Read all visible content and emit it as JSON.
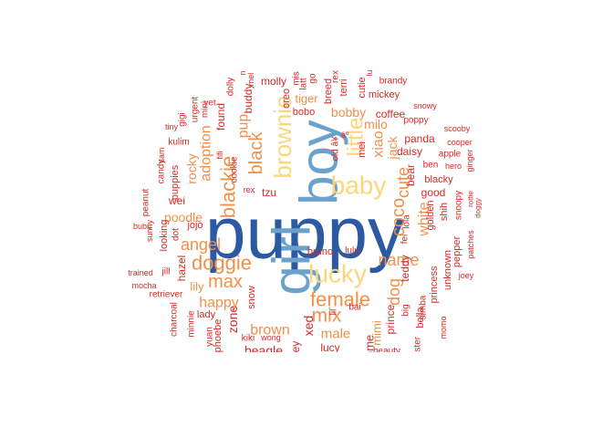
{
  "palette": {
    "dark_blue": "#2b5aa3",
    "mid_blue": "#6aa2cc",
    "yellow": "#fcd67a",
    "orange": "#f28f4a",
    "red": "#d62a26"
  },
  "words": [
    {
      "text": "puppy",
      "color": "dark_blue"
    },
    {
      "text": "boy",
      "color": "mid_blue"
    },
    {
      "text": "girl",
      "color": "mid_blue"
    },
    {
      "text": "lucky",
      "color": "yellow"
    },
    {
      "text": "baby",
      "color": "yellow"
    },
    {
      "text": "brownie",
      "color": "yellow"
    },
    {
      "text": "little",
      "color": "yellow"
    },
    {
      "text": "female",
      "color": "orange"
    },
    {
      "text": "mix",
      "color": "orange"
    },
    {
      "text": "doggie",
      "color": "orange"
    },
    {
      "text": "blackie",
      "color": "orange"
    },
    {
      "text": "black",
      "color": "orange"
    },
    {
      "text": "max",
      "color": "orange"
    },
    {
      "text": "angel",
      "color": "orange"
    },
    {
      "text": "name",
      "color": "orange"
    },
    {
      "text": "coco",
      "color": "orange"
    },
    {
      "text": "cute",
      "color": "orange"
    },
    {
      "text": "dog",
      "color": "orange"
    },
    {
      "text": "happy",
      "color": "orange"
    },
    {
      "text": "adoption",
      "color": "orange"
    },
    {
      "text": "pup",
      "color": "orange"
    },
    {
      "text": "xiao",
      "color": "orange"
    },
    {
      "text": "white",
      "color": "orange"
    },
    {
      "text": "brown",
      "color": "orange"
    },
    {
      "text": "male",
      "color": "orange"
    },
    {
      "text": "bobby",
      "color": "orange"
    },
    {
      "text": "milo",
      "color": "orange"
    },
    {
      "text": "poodle",
      "color": "orange"
    },
    {
      "text": "rocky",
      "color": "orange"
    },
    {
      "text": "jack",
      "color": "orange"
    },
    {
      "text": "tiger",
      "color": "orange"
    },
    {
      "text": "lily",
      "color": "orange"
    },
    {
      "text": "mimi",
      "color": "orange"
    },
    {
      "text": "daisy",
      "color": "red"
    },
    {
      "text": "coffee",
      "color": "red"
    },
    {
      "text": "panda",
      "color": "red"
    },
    {
      "text": "good",
      "color": "red"
    },
    {
      "text": "bear",
      "color": "red"
    },
    {
      "text": "blacky",
      "color": "red"
    },
    {
      "text": "tzu",
      "color": "red"
    },
    {
      "text": "found",
      "color": "red"
    },
    {
      "text": "buddy",
      "color": "red"
    },
    {
      "text": "molly",
      "color": "red"
    },
    {
      "text": "mickey",
      "color": "red"
    },
    {
      "text": "brandy",
      "color": "red"
    },
    {
      "text": "poppy",
      "color": "red"
    },
    {
      "text": "snowy",
      "color": "red"
    },
    {
      "text": "scooby",
      "color": "red"
    },
    {
      "text": "cooper",
      "color": "red"
    },
    {
      "text": "apple",
      "color": "red"
    },
    {
      "text": "hero",
      "color": "red"
    },
    {
      "text": "ginger",
      "color": "red"
    },
    {
      "text": "ben",
      "color": "red"
    },
    {
      "text": "rottie",
      "color": "red"
    },
    {
      "text": "doggy",
      "color": "red"
    },
    {
      "text": "snoopy",
      "color": "red"
    },
    {
      "text": "shih",
      "color": "red"
    },
    {
      "text": "golden",
      "color": "red"
    },
    {
      "text": "pepper",
      "color": "red"
    },
    {
      "text": "patches",
      "color": "red"
    },
    {
      "text": "joey",
      "color": "red"
    },
    {
      "text": "unknown",
      "color": "red"
    },
    {
      "text": "princess",
      "color": "red"
    },
    {
      "text": "simba",
      "color": "red"
    },
    {
      "text": "momo",
      "color": "red"
    },
    {
      "text": "bella",
      "color": "red"
    },
    {
      "text": "teddy",
      "color": "red"
    },
    {
      "text": "big",
      "color": "red"
    },
    {
      "text": "prince",
      "color": "red"
    },
    {
      "text": "fei",
      "color": "red"
    },
    {
      "text": "lola",
      "color": "red"
    },
    {
      "text": "bai",
      "color": "red"
    },
    {
      "text": "lulu",
      "color": "red"
    },
    {
      "text": "bruno",
      "color": "red"
    },
    {
      "text": "lil",
      "color": "red"
    },
    {
      "text": "xed",
      "color": "red"
    },
    {
      "text": "ey",
      "color": "red"
    },
    {
      "text": "lucy",
      "color": "red"
    },
    {
      "text": "beagle",
      "color": "red"
    },
    {
      "text": "wong",
      "color": "red"
    },
    {
      "text": "kiki",
      "color": "red"
    },
    {
      "text": "zone",
      "color": "red"
    },
    {
      "text": "phoebe",
      "color": "red"
    },
    {
      "text": "yuan",
      "color": "red"
    },
    {
      "text": "lady",
      "color": "red"
    },
    {
      "text": "minnie",
      "color": "red"
    },
    {
      "text": "charcoal",
      "color": "red"
    },
    {
      "text": "snow",
      "color": "red"
    },
    {
      "text": "retriever",
      "color": "red"
    },
    {
      "text": "mocha",
      "color": "red"
    },
    {
      "text": "trained",
      "color": "red"
    },
    {
      "text": "jill",
      "color": "red"
    },
    {
      "text": "hazel",
      "color": "red"
    },
    {
      "text": "looking",
      "color": "red"
    },
    {
      "text": "sunny",
      "color": "red"
    },
    {
      "text": "peanut",
      "color": "red"
    },
    {
      "text": "candy",
      "color": "red"
    },
    {
      "text": "sam",
      "color": "red"
    },
    {
      "text": "bubu",
      "color": "red"
    },
    {
      "text": "dot",
      "color": "red"
    },
    {
      "text": "jojo",
      "color": "red"
    },
    {
      "text": "wei",
      "color": "red"
    },
    {
      "text": "puppies",
      "color": "red"
    },
    {
      "text": "kulim",
      "color": "red"
    },
    {
      "text": "tiny",
      "color": "red"
    },
    {
      "text": "gigi",
      "color": "red"
    },
    {
      "text": "urgent",
      "color": "red"
    },
    {
      "text": "mini",
      "color": "red"
    },
    {
      "text": "yet",
      "color": "red"
    },
    {
      "text": "fifi",
      "color": "red"
    },
    {
      "text": "cookie",
      "color": "red"
    },
    {
      "text": "rex",
      "color": "red"
    },
    {
      "text": "mel",
      "color": "red"
    },
    {
      "text": "dolly",
      "color": "red"
    },
    {
      "text": "n",
      "color": "red"
    },
    {
      "text": "oreo",
      "color": "red"
    },
    {
      "text": "mis",
      "color": "red"
    },
    {
      "text": "latt",
      "color": "red"
    },
    {
      "text": "go",
      "color": "red"
    },
    {
      "text": "bobo",
      "color": "red"
    },
    {
      "text": "breed",
      "color": "red"
    },
    {
      "text": "rex",
      "color": "red"
    },
    {
      "text": "terri",
      "color": "red"
    },
    {
      "text": "cutie",
      "color": "red"
    },
    {
      "text": "lu",
      "color": "red"
    },
    {
      "text": "mei",
      "color": "red"
    },
    {
      "text": "old â¥",
      "color": "red"
    },
    {
      "text": "âº",
      "color": "red"
    },
    {
      "text": "home",
      "color": "red"
    },
    {
      "text": "beauty",
      "color": "red"
    },
    {
      "text": "ester",
      "color": "red"
    }
  ]
}
